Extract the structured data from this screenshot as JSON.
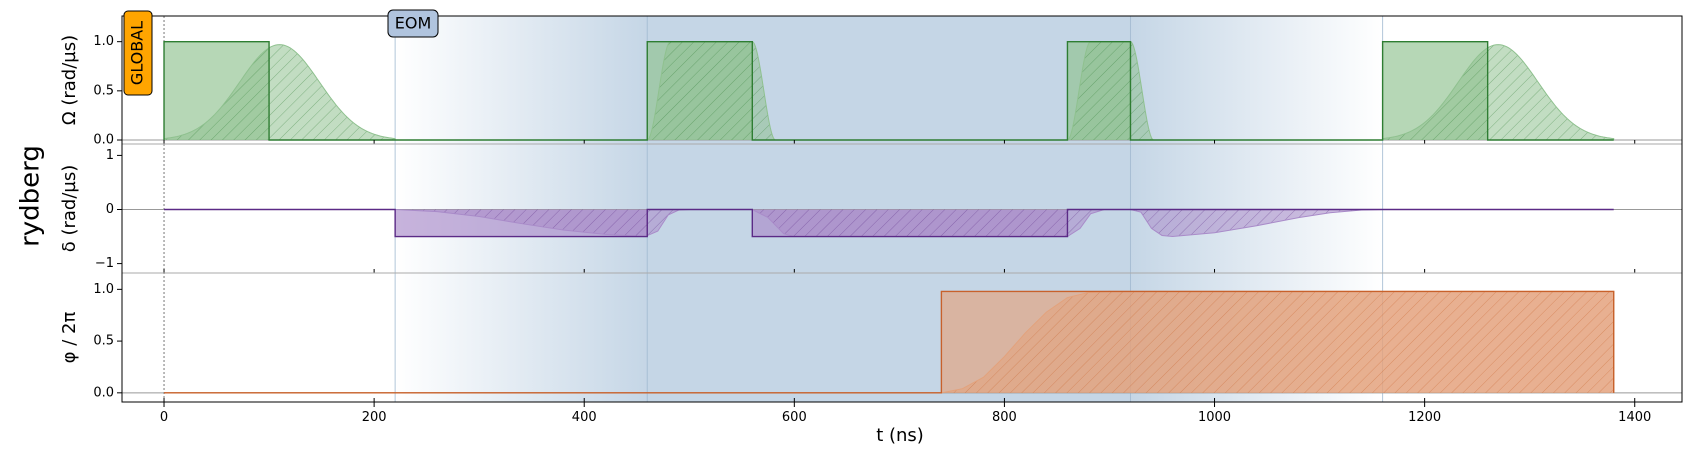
{
  "chart_data": {
    "type": "area",
    "channel_label": "rydberg",
    "badges": {
      "global": "GLOBAL",
      "eom": "EOM"
    },
    "xlabel": "t (ns)",
    "xlim": [
      -40,
      1445
    ],
    "x_ticks": [
      {
        "v": 0,
        "label": "0"
      },
      {
        "v": 200,
        "label": "200"
      },
      {
        "v": 400,
        "label": "400"
      },
      {
        "v": 600,
        "label": "600"
      },
      {
        "v": 800,
        "label": "800"
      },
      {
        "v": 1000,
        "label": "1000"
      },
      {
        "v": 1200,
        "label": "1200"
      },
      {
        "v": 1400,
        "label": "1400"
      }
    ],
    "eom_blocks": [
      {
        "ramp_start": 220,
        "full_start": 460,
        "full_end": 920,
        "ramp_end": 1160
      }
    ],
    "vlines": [
      220,
      460,
      920,
      1160
    ],
    "colors": {
      "amplitude": "#2e7d32",
      "amplitude_fill": "#8fc18f",
      "detuning": "#5b2a86",
      "detuning_fill": "#a98bc9",
      "phase": "#c8612b",
      "phase_fill": "#e3a27c",
      "eom_band": "#c5d6e6"
    },
    "panels": [
      {
        "id": "amplitude",
        "ylabel": "Ω (rad/µs)",
        "ylim": [
          0,
          1.2
        ],
        "y_ticks": [
          {
            "v": 0,
            "label": "0.0"
          },
          {
            "v": 0.5,
            "label": "0.5"
          },
          {
            "v": 1.0,
            "label": "1.0"
          }
        ],
        "programmed": [
          [
            0,
            0
          ],
          [
            0,
            1
          ],
          [
            100,
            1
          ],
          [
            100,
            0
          ],
          [
            460,
            0
          ],
          [
            460,
            1
          ],
          [
            560,
            1
          ],
          [
            560,
            0
          ],
          [
            860,
            0
          ],
          [
            860,
            1
          ],
          [
            920,
            1
          ],
          [
            920,
            0
          ],
          [
            1160,
            0
          ],
          [
            1160,
            1
          ],
          [
            1260,
            1
          ],
          [
            1260,
            0
          ],
          [
            1380,
            0
          ]
        ],
        "realized": [
          {
            "type": "gauss",
            "t0": 0,
            "t1": 220,
            "center": 110,
            "sigma": 38,
            "amp": 0.97
          },
          {
            "type": "flat",
            "rise_start": 460,
            "rise_end": 482,
            "fall_start": 560,
            "fall_end": 582,
            "amp": 1.0
          },
          {
            "type": "flat",
            "rise_start": 860,
            "rise_end": 882,
            "fall_start": 920,
            "fall_end": 942,
            "amp": 1.0
          },
          {
            "type": "gauss",
            "t0": 1160,
            "t1": 1380,
            "center": 1270,
            "sigma": 38,
            "amp": 0.97
          }
        ]
      },
      {
        "id": "detuning",
        "ylabel": "δ (rad/µs)",
        "ylim": [
          -1.1,
          1.1
        ],
        "y_ticks": [
          {
            "v": -1,
            "label": "−1"
          },
          {
            "v": 0,
            "label": "0"
          },
          {
            "v": 1,
            "label": "1"
          }
        ],
        "programmed": [
          [
            0,
            0
          ],
          [
            220,
            0
          ],
          [
            220,
            -0.5
          ],
          [
            460,
            -0.5
          ],
          [
            460,
            0
          ],
          [
            560,
            0
          ],
          [
            560,
            -0.5
          ],
          [
            860,
            -0.5
          ],
          [
            860,
            0
          ],
          [
            1380,
            0
          ]
        ],
        "realized_points": [
          [
            0,
            0
          ],
          [
            220,
            0
          ],
          [
            260,
            -0.04
          ],
          [
            300,
            -0.13
          ],
          [
            340,
            -0.26
          ],
          [
            380,
            -0.38
          ],
          [
            420,
            -0.46
          ],
          [
            458,
            -0.5
          ],
          [
            470,
            -0.4
          ],
          [
            480,
            -0.1
          ],
          [
            490,
            -0.01
          ],
          [
            500,
            0
          ],
          [
            560,
            0
          ],
          [
            575,
            -0.15
          ],
          [
            590,
            -0.45
          ],
          [
            600,
            -0.5
          ],
          [
            860,
            -0.5
          ],
          [
            872,
            -0.35
          ],
          [
            882,
            -0.08
          ],
          [
            895,
            0
          ],
          [
            920,
            0
          ],
          [
            930,
            -0.05
          ],
          [
            940,
            -0.35
          ],
          [
            950,
            -0.48
          ],
          [
            960,
            -0.5
          ],
          [
            1000,
            -0.43
          ],
          [
            1040,
            -0.3
          ],
          [
            1080,
            -0.15
          ],
          [
            1110,
            -0.06
          ],
          [
            1140,
            -0.01
          ],
          [
            1160,
            0
          ],
          [
            1380,
            0
          ]
        ]
      },
      {
        "id": "phase",
        "ylabel": "φ / 2π",
        "ylim": [
          -0.05,
          1.1
        ],
        "y_ticks": [
          {
            "v": 0,
            "label": "0.0"
          },
          {
            "v": 0.5,
            "label": "0.5"
          },
          {
            "v": 1.0,
            "label": "1.0"
          }
        ],
        "programmed": [
          [
            0,
            0
          ],
          [
            740,
            0
          ],
          [
            740,
            0.98
          ],
          [
            1380,
            0.98
          ],
          [
            1380,
            0
          ]
        ],
        "realized_points": [
          [
            0,
            0
          ],
          [
            740,
            0
          ],
          [
            760,
            0.04
          ],
          [
            780,
            0.15
          ],
          [
            800,
            0.35
          ],
          [
            820,
            0.58
          ],
          [
            840,
            0.78
          ],
          [
            860,
            0.92
          ],
          [
            880,
            0.97
          ],
          [
            900,
            0.98
          ],
          [
            1380,
            0.98
          ],
          [
            1380,
            0
          ]
        ]
      }
    ]
  }
}
